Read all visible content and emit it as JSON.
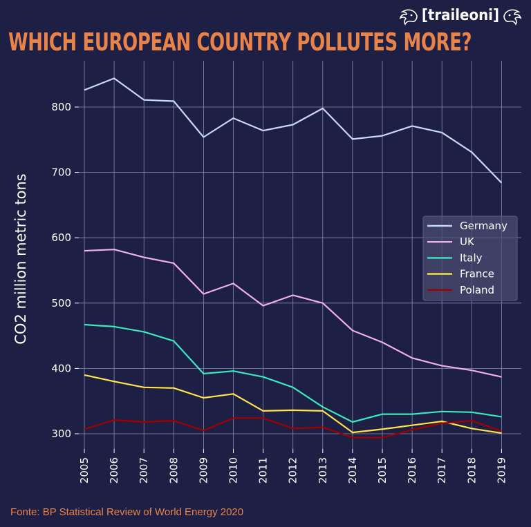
{
  "header": {
    "title": "WHICH EUROPEAN COUNTRY POLLUTES MORE?",
    "logo_text": "[traileoni]"
  },
  "footer": {
    "source": "Fonte: BP Statistical Review of World Energy 2020"
  },
  "colors": {
    "background": "#1e1f45",
    "title": "#e8834a",
    "grid": "#8a8bb0"
  },
  "chart_data": {
    "type": "line",
    "title": "WHICH EUROPEAN COUNTRY POLLUTES MORE?",
    "xlabel": "",
    "ylabel": "CO2 million metric tons",
    "x": [
      2005,
      2006,
      2007,
      2008,
      2009,
      2010,
      2011,
      2012,
      2013,
      2014,
      2015,
      2016,
      2017,
      2018,
      2019
    ],
    "ylim": [
      260,
      870
    ],
    "yticks": [
      300,
      400,
      500,
      600,
      700,
      800
    ],
    "grid": true,
    "legend_position": "right",
    "series": [
      {
        "name": "Germany",
        "color": "#c8d8f5",
        "values": [
          826,
          844,
          811,
          809,
          754,
          783,
          764,
          773,
          798,
          751,
          756,
          771,
          761,
          731,
          684
        ]
      },
      {
        "name": "UK",
        "color": "#f0b0e8",
        "values": [
          580,
          582,
          570,
          561,
          514,
          530,
          496,
          512,
          500,
          458,
          440,
          416,
          404,
          397,
          387
        ]
      },
      {
        "name": "Italy",
        "color": "#3be8c0",
        "values": [
          467,
          464,
          456,
          442,
          392,
          396,
          387,
          371,
          341,
          318,
          330,
          330,
          334,
          333,
          326
        ]
      },
      {
        "name": "France",
        "color": "#ffe44a",
        "values": [
          390,
          380,
          371,
          370,
          355,
          361,
          335,
          336,
          335,
          302,
          307,
          313,
          319,
          308,
          301
        ]
      },
      {
        "name": "Poland",
        "color": "#a00000",
        "values": [
          307,
          321,
          318,
          320,
          305,
          324,
          324,
          308,
          310,
          294,
          294,
          306,
          316,
          320,
          304
        ]
      }
    ]
  }
}
